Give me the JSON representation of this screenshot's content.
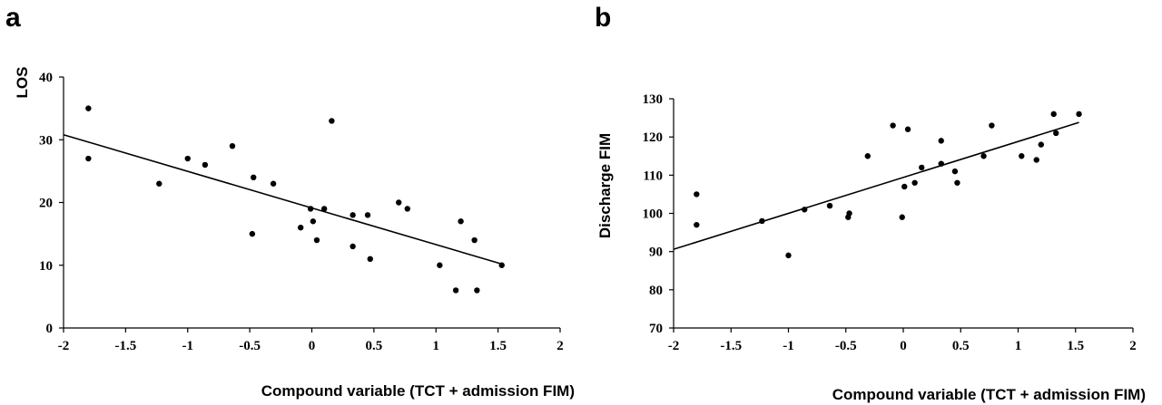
{
  "figure": {
    "panel_labels": [
      "a",
      "b"
    ]
  },
  "chart_data": [
    {
      "type": "scatter",
      "panel": "a",
      "title": "",
      "xlabel": "Compound variable (TCT + admission FIM)",
      "ylabel": "LOS",
      "xlim": [
        -2,
        2
      ],
      "ylim": [
        0,
        40
      ],
      "xticks": [
        -2,
        -1.5,
        -1,
        -0.5,
        0,
        0.5,
        1,
        1.5,
        2
      ],
      "yticks": [
        0,
        10,
        20,
        30,
        40
      ],
      "grid": false,
      "legend": "none",
      "points": [
        [
          -1.8,
          35
        ],
        [
          -1.8,
          27
        ],
        [
          -1.23,
          23
        ],
        [
          -1.0,
          27
        ],
        [
          -0.86,
          26
        ],
        [
          -0.64,
          29
        ],
        [
          -0.48,
          15
        ],
        [
          -0.47,
          24
        ],
        [
          -0.31,
          23
        ],
        [
          -0.09,
          16
        ],
        [
          -0.01,
          19
        ],
        [
          0.01,
          17
        ],
        [
          0.04,
          14
        ],
        [
          0.1,
          19
        ],
        [
          0.16,
          33
        ],
        [
          0.33,
          13
        ],
        [
          0.33,
          18
        ],
        [
          0.45,
          18
        ],
        [
          0.47,
          11
        ],
        [
          0.7,
          20
        ],
        [
          0.77,
          19
        ],
        [
          1.03,
          10
        ],
        [
          1.16,
          6
        ],
        [
          1.2,
          17
        ],
        [
          1.31,
          14
        ],
        [
          1.33,
          6
        ],
        [
          1.53,
          10
        ]
      ],
      "trendline": {
        "x": [
          -2,
          1.53
        ],
        "y": [
          30.8,
          10.2
        ]
      }
    },
    {
      "type": "scatter",
      "panel": "b",
      "title": "",
      "xlabel": "Compound variable (TCT + admission FIM)",
      "ylabel": "Discharge FIM",
      "xlim": [
        -2,
        2
      ],
      "ylim": [
        70,
        130
      ],
      "xticks": [
        -2,
        -1.5,
        -1,
        -0.5,
        0,
        0.5,
        1,
        1.5,
        2
      ],
      "yticks": [
        70,
        80,
        90,
        100,
        110,
        120,
        130
      ],
      "grid": false,
      "legend": "none",
      "points": [
        [
          -1.8,
          105
        ],
        [
          -1.8,
          97
        ],
        [
          -1.23,
          98
        ],
        [
          -1.0,
          89
        ],
        [
          -0.86,
          101
        ],
        [
          -0.64,
          102
        ],
        [
          -0.48,
          99
        ],
        [
          -0.47,
          100
        ],
        [
          -0.31,
          115
        ],
        [
          -0.09,
          123
        ],
        [
          -0.01,
          99
        ],
        [
          0.01,
          107
        ],
        [
          0.04,
          122
        ],
        [
          0.1,
          108
        ],
        [
          0.16,
          112
        ],
        [
          0.33,
          113
        ],
        [
          0.33,
          119
        ],
        [
          0.45,
          111
        ],
        [
          0.47,
          108
        ],
        [
          0.7,
          115
        ],
        [
          0.77,
          123
        ],
        [
          1.03,
          115
        ],
        [
          1.16,
          114
        ],
        [
          1.2,
          118
        ],
        [
          1.31,
          126
        ],
        [
          1.33,
          121
        ],
        [
          1.53,
          126
        ]
      ],
      "trendline": {
        "x": [
          -2,
          1.53
        ],
        "y": [
          90.6,
          123.8
        ]
      }
    }
  ]
}
